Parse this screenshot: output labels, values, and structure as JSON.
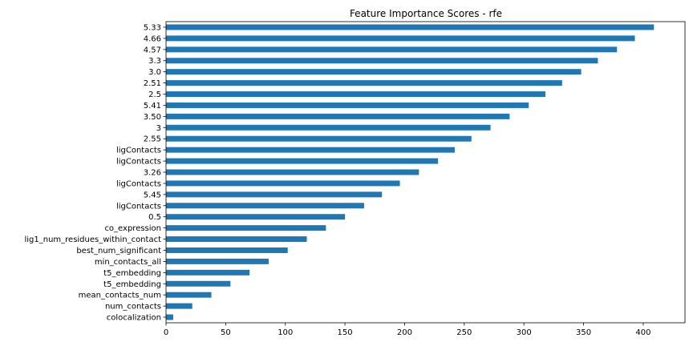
{
  "chart_data": {
    "type": "bar",
    "orientation": "horizontal",
    "title": "Feature Importance Scores - rfe",
    "xlabel": "",
    "ylabel": "",
    "xlim": [
      0,
      435
    ],
    "xticks": [
      0,
      50,
      100,
      150,
      200,
      250,
      300,
      350,
      400
    ],
    "bar_color": "#1f77b4",
    "grid": false,
    "legend": "none",
    "categories": [
      "5.33",
      "4.66",
      "4.57",
      "3.3",
      "3.0",
      "2.51",
      "2.5",
      "5.41",
      "3.50",
      "3",
      "2.55",
      "ligContacts",
      "ligContacts",
      "3.26",
      "ligContacts",
      "5.45",
      "ligContacts",
      "0.5",
      "co_expression",
      "lig1_num_residues_within_contact",
      "best_num_significant",
      "min_contacts_all",
      "t5_embedding",
      "t5_embedding",
      "mean_contacts_num",
      "num_contacts",
      "colocalization"
    ],
    "values": [
      409.0,
      393.0,
      378.0,
      362.0,
      348.0,
      332.0,
      318.0,
      304.0,
      288.0,
      272.0,
      256.0,
      242.0,
      228.0,
      212.0,
      196.0,
      181.0,
      166.0,
      150.0,
      134.0,
      118.0,
      102.0,
      86.0,
      70.0,
      54.0,
      38.0,
      22.0,
      6.0
    ]
  }
}
